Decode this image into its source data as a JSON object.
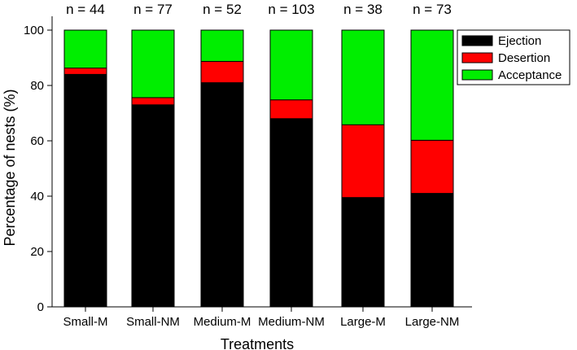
{
  "chart_data": {
    "type": "bar",
    "stacked": true,
    "categories": [
      "Small-M",
      "Small-NM",
      "Medium-M",
      "Medium-NM",
      "Large-M",
      "Large-NM"
    ],
    "sample_sizes": [
      "n = 44",
      "n = 77",
      "n = 52",
      "n = 103",
      "n = 38",
      "n = 73"
    ],
    "series": [
      {
        "name": "Ejection",
        "color": "#000000",
        "values": [
          84,
          73,
          81,
          68,
          39.5,
          41
        ]
      },
      {
        "name": "Desertion",
        "color": "#ff0000",
        "values": [
          2.3,
          2.6,
          7.7,
          6.8,
          26.3,
          19.2
        ]
      },
      {
        "name": "Acceptance",
        "color": "#00ee00",
        "values": [
          13.7,
          24.4,
          11.3,
          25.2,
          34.2,
          39.8
        ]
      }
    ],
    "xlabel": "Treatments",
    "ylabel": "Percentage of nests (%)",
    "ylim": [
      0,
      100
    ],
    "yticks": [
      0,
      20,
      40,
      60,
      80,
      100
    ],
    "grid": false,
    "legend_position": "top-right"
  }
}
